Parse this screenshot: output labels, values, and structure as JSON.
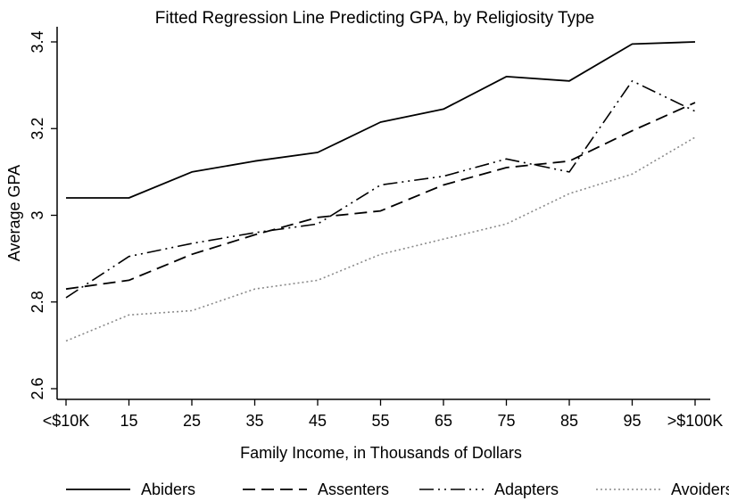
{
  "chart_data": {
    "type": "line",
    "title": "Fitted Regression Line Predicting GPA, by Religiosity Type",
    "xlabel": "Family Income, in Thousands of Dollars",
    "ylabel": "Average GPA",
    "categories": [
      "<$10K",
      "15",
      "25",
      "35",
      "45",
      "55",
      "65",
      "75",
      "85",
      "95",
      ">$100K"
    ],
    "yticks": [
      "2.6",
      "2.8",
      "3",
      "3.2",
      "3.4"
    ],
    "ylim": [
      2.6,
      3.4
    ],
    "grid": false,
    "legend_position": "bottom",
    "series": [
      {
        "name": "Abiders",
        "style": "solid",
        "values": [
          3.04,
          3.04,
          3.1,
          3.125,
          3.145,
          3.215,
          3.245,
          3.32,
          3.31,
          3.395,
          3.4
        ]
      },
      {
        "name": "Assenters",
        "style": "dash",
        "values": [
          2.83,
          2.85,
          2.91,
          2.955,
          2.995,
          3.01,
          3.07,
          3.11,
          3.125,
          3.195,
          3.26
        ]
      },
      {
        "name": "Adapters",
        "style": "dashdot",
        "values": [
          2.81,
          2.905,
          2.935,
          2.96,
          2.98,
          3.07,
          3.09,
          3.13,
          3.1,
          3.31,
          3.24
        ]
      },
      {
        "name": "Avoiders",
        "style": "dot",
        "values": [
          2.71,
          2.77,
          2.78,
          2.83,
          2.85,
          2.91,
          2.945,
          2.98,
          3.05,
          3.095,
          3.18
        ]
      }
    ]
  }
}
